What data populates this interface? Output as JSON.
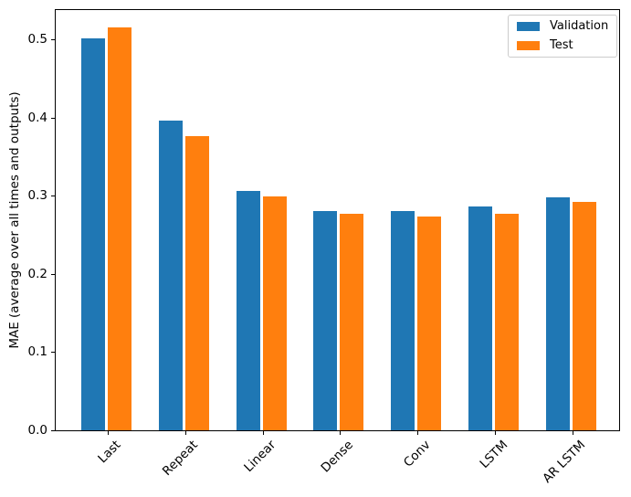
{
  "figure": {
    "background": "#ffffff",
    "spine_color": "#000000",
    "text_color": "#000000"
  },
  "chart_data": {
    "type": "bar",
    "title": "",
    "xlabel": "",
    "ylabel": "MAE (average over all times and outputs)",
    "categories": [
      "Last",
      "Repeat",
      "Linear",
      "Dense",
      "Conv",
      "LSTM",
      "AR LSTM"
    ],
    "series": [
      {
        "name": "Validation",
        "color": "#1f77b4",
        "values": [
          0.501,
          0.396,
          0.306,
          0.28,
          0.28,
          0.286,
          0.298
        ]
      },
      {
        "name": "Test",
        "color": "#ff7f0e",
        "values": [
          0.515,
          0.377,
          0.299,
          0.277,
          0.274,
          0.277,
          0.292
        ]
      }
    ],
    "yticks": [
      0.0,
      0.1,
      0.2,
      0.3,
      0.4,
      0.5
    ],
    "ylim": [
      0,
      0.54
    ],
    "grid": false,
    "x_tick_rotation_deg": 45,
    "legend": {
      "position": "upper right",
      "border_color": "#cccccc",
      "entries": [
        {
          "label": "Validation",
          "color": "#1f77b4"
        },
        {
          "label": "Test",
          "color": "#ff7f0e"
        }
      ]
    }
  }
}
